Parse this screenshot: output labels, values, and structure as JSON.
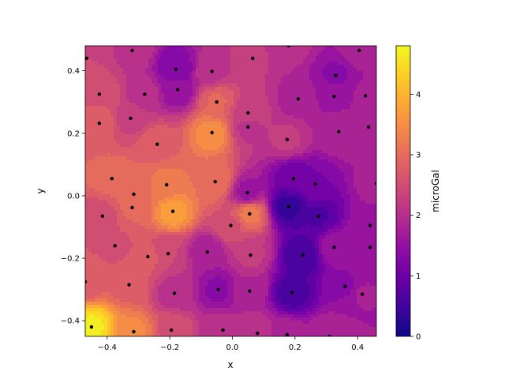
{
  "chart_data": {
    "type": "contourf",
    "xlabel": "x",
    "ylabel": "y",
    "xlim": [
      -0.47,
      0.46
    ],
    "ylim": [
      -0.45,
      0.48
    ],
    "xticks": [
      -0.4,
      -0.2,
      0.0,
      0.2,
      0.4
    ],
    "yticks": [
      -0.4,
      -0.2,
      0.0,
      0.2,
      0.4
    ],
    "xtick_labels": [
      "−0.4",
      "−0.2",
      "0.0",
      "0.2",
      "0.4"
    ],
    "ytick_labels": [
      "−0.4",
      "−0.2",
      "0.0",
      "0.2",
      "0.4"
    ],
    "colormap": "plasma",
    "colorbar": {
      "label": "microGal",
      "range": [
        0,
        4.8
      ],
      "ticks": [
        0,
        1,
        2,
        3,
        4
      ],
      "tick_labels": [
        "0",
        "1",
        "2",
        "3",
        "4"
      ]
    },
    "points": [
      {
        "x": -0.465,
        "y": 0.44,
        "v": 2.4
      },
      {
        "x": -0.32,
        "y": 0.465,
        "v": 2.1
      },
      {
        "x": 0.065,
        "y": 0.44,
        "v": 2.2
      },
      {
        "x": 0.18,
        "y": 0.48,
        "v": 2.0
      },
      {
        "x": 0.405,
        "y": 0.465,
        "v": 1.8
      },
      {
        "x": -0.18,
        "y": 0.405,
        "v": 1.2
      },
      {
        "x": -0.065,
        "y": 0.398,
        "v": 2.1
      },
      {
        "x": -0.425,
        "y": 0.325,
        "v": 2.6
      },
      {
        "x": -0.28,
        "y": 0.325,
        "v": 2.0
      },
      {
        "x": -0.175,
        "y": 0.34,
        "v": 1.5
      },
      {
        "x": -0.05,
        "y": 0.3,
        "v": 2.9
      },
      {
        "x": 0.21,
        "y": 0.31,
        "v": 1.8
      },
      {
        "x": 0.33,
        "y": 0.385,
        "v": 1.4
      },
      {
        "x": 0.325,
        "y": 0.318,
        "v": 1.6
      },
      {
        "x": 0.425,
        "y": 0.32,
        "v": 1.7
      },
      {
        "x": 0.05,
        "y": 0.265,
        "v": 2.3
      },
      {
        "x": -0.425,
        "y": 0.232,
        "v": 2.8
      },
      {
        "x": -0.325,
        "y": 0.248,
        "v": 2.3
      },
      {
        "x": 0.05,
        "y": 0.22,
        "v": 2.1
      },
      {
        "x": -0.065,
        "y": 0.202,
        "v": 3.5
      },
      {
        "x": 0.34,
        "y": 0.205,
        "v": 1.9
      },
      {
        "x": 0.435,
        "y": 0.22,
        "v": 1.8
      },
      {
        "x": 0.175,
        "y": 0.18,
        "v": 2.2
      },
      {
        "x": -0.24,
        "y": 0.165,
        "v": 2.8
      },
      {
        "x": -0.385,
        "y": 0.055,
        "v": 3.0
      },
      {
        "x": -0.055,
        "y": 0.045,
        "v": 3.1
      },
      {
        "x": -0.21,
        "y": 0.035,
        "v": 3.2
      },
      {
        "x": 0.195,
        "y": 0.055,
        "v": 1.0
      },
      {
        "x": 0.265,
        "y": 0.038,
        "v": 1.2
      },
      {
        "x": 0.46,
        "y": 0.04,
        "v": 1.8
      },
      {
        "x": -0.315,
        "y": 0.005,
        "v": 3.0
      },
      {
        "x": 0.048,
        "y": 0.01,
        "v": 1.6
      },
      {
        "x": -0.32,
        "y": -0.038,
        "v": 2.9
      },
      {
        "x": -0.19,
        "y": -0.05,
        "v": 3.7
      },
      {
        "x": 0.18,
        "y": -0.035,
        "v": 0.4
      },
      {
        "x": -0.415,
        "y": -0.065,
        "v": 2.5
      },
      {
        "x": 0.055,
        "y": -0.058,
        "v": 3.2
      },
      {
        "x": 0.275,
        "y": -0.065,
        "v": 0.7
      },
      {
        "x": -0.005,
        "y": -0.095,
        "v": 2.6
      },
      {
        "x": 0.44,
        "y": -0.095,
        "v": 1.6
      },
      {
        "x": -0.375,
        "y": -0.16,
        "v": 2.6
      },
      {
        "x": 0.325,
        "y": -0.165,
        "v": 1.6
      },
      {
        "x": 0.44,
        "y": -0.165,
        "v": 1.6
      },
      {
        "x": -0.08,
        "y": -0.18,
        "v": 1.7
      },
      {
        "x": -0.205,
        "y": -0.185,
        "v": 2.4
      },
      {
        "x": -0.27,
        "y": -0.195,
        "v": 2.7
      },
      {
        "x": 0.058,
        "y": -0.19,
        "v": 2.2
      },
      {
        "x": 0.225,
        "y": -0.19,
        "v": 0.5
      },
      {
        "x": -0.47,
        "y": -0.275,
        "v": 2.7
      },
      {
        "x": -0.33,
        "y": -0.285,
        "v": 2.8
      },
      {
        "x": 0.36,
        "y": -0.29,
        "v": 1.4
      },
      {
        "x": -0.045,
        "y": -0.3,
        "v": 1.4
      },
      {
        "x": 0.055,
        "y": -0.305,
        "v": 1.9
      },
      {
        "x": -0.185,
        "y": -0.312,
        "v": 2.0
      },
      {
        "x": 0.19,
        "y": -0.31,
        "v": 0.6
      },
      {
        "x": 0.415,
        "y": -0.315,
        "v": 1.7
      },
      {
        "x": -0.45,
        "y": -0.42,
        "v": 4.6
      },
      {
        "x": -0.315,
        "y": -0.435,
        "v": 3.4
      },
      {
        "x": -0.195,
        "y": -0.43,
        "v": 2.6
      },
      {
        "x": -0.03,
        "y": -0.43,
        "v": 2.0
      },
      {
        "x": 0.08,
        "y": -0.44,
        "v": 2.1
      },
      {
        "x": 0.175,
        "y": -0.445,
        "v": 1.8
      },
      {
        "x": 0.31,
        "y": -0.45,
        "v": 1.9
      }
    ]
  }
}
